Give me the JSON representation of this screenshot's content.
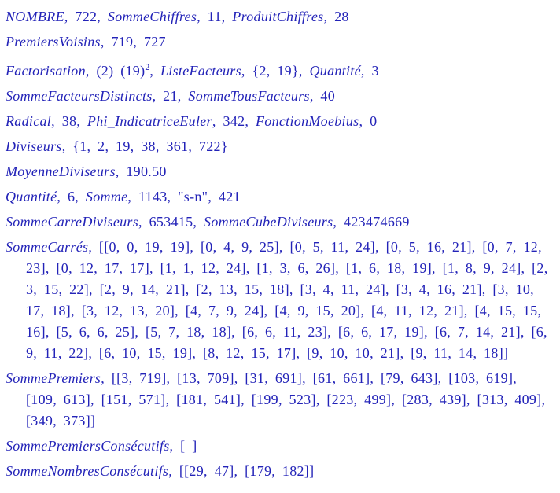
{
  "colors": {
    "text": "#2323b8",
    "background": "#ffffff"
  },
  "number": 722,
  "lines": [
    {
      "name": "nombre",
      "segments": [
        {
          "style": "it",
          "text": "NOMBRE"
        },
        {
          "style": "rm",
          "text": ", 722, "
        },
        {
          "style": "it",
          "text": "SommeChiffres"
        },
        {
          "style": "rm",
          "text": ", 11, "
        },
        {
          "style": "it",
          "text": "ProduitChiffres"
        },
        {
          "style": "rm",
          "text": ", 28"
        }
      ]
    },
    {
      "name": "premiers-voisins",
      "segments": [
        {
          "style": "it",
          "text": "PremiersVoisins"
        },
        {
          "style": "rm",
          "text": ", 719, 727"
        }
      ]
    },
    {
      "name": "factorisation",
      "segments": [
        {
          "style": "it",
          "text": "Factorisation"
        },
        {
          "style": "rm",
          "text": ", (2) (19)"
        },
        {
          "style": "sup",
          "text": "2"
        },
        {
          "style": "rm",
          "text": ", "
        },
        {
          "style": "it",
          "text": "ListeFacteurs"
        },
        {
          "style": "rm",
          "text": ", {2, 19}, "
        },
        {
          "style": "it",
          "text": "Quantité"
        },
        {
          "style": "rm",
          "text": ", 3"
        }
      ]
    },
    {
      "name": "somme-facteurs",
      "segments": [
        {
          "style": "it",
          "text": "SommeFacteursDistincts"
        },
        {
          "style": "rm",
          "text": ", 21, "
        },
        {
          "style": "it",
          "text": "SommeTousFacteurs"
        },
        {
          "style": "rm",
          "text": ", 40"
        }
      ]
    },
    {
      "name": "radical-phi-moebius",
      "segments": [
        {
          "style": "it",
          "text": "Radical"
        },
        {
          "style": "rm",
          "text": ", 38, "
        },
        {
          "style": "it",
          "text": "Phi_IndicatriceEuler"
        },
        {
          "style": "rm",
          "text": ", 342, "
        },
        {
          "style": "it",
          "text": "FonctionMoebius"
        },
        {
          "style": "rm",
          "text": ", 0"
        }
      ]
    },
    {
      "name": "diviseurs",
      "segments": [
        {
          "style": "it",
          "text": "Diviseurs"
        },
        {
          "style": "rm",
          "text": ", {1, 2, 19, 38, 361, 722}"
        }
      ]
    },
    {
      "name": "moyenne-diviseurs",
      "segments": [
        {
          "style": "it",
          "text": "MoyenneDiviseurs"
        },
        {
          "style": "rm",
          "text": ", 190.50"
        }
      ]
    },
    {
      "name": "quantite-somme",
      "segments": [
        {
          "style": "it",
          "text": "Quantité"
        },
        {
          "style": "rm",
          "text": ", 6, "
        },
        {
          "style": "it",
          "text": "Somme"
        },
        {
          "style": "rm",
          "text": ", 1143, \"s-n\", 421"
        }
      ]
    },
    {
      "name": "somme-carre-cube-diviseurs",
      "segments": [
        {
          "style": "it",
          "text": "SommeCarreDiviseurs"
        },
        {
          "style": "rm",
          "text": ", 653415, "
        },
        {
          "style": "it",
          "text": "SommeCubeDiviseurs"
        },
        {
          "style": "rm",
          "text": ", 423474669"
        }
      ]
    },
    {
      "name": "somme-carres",
      "segments": [
        {
          "style": "it",
          "text": "SommeCarrés"
        },
        {
          "style": "rm",
          "text": ", [[0, 0, 19, 19], [0, 4, 9, 25], [0, 5, 11, 24], [0, 5, 16, 21], [0, 7, 12, 23], [0, 12, 17, 17], [1, 1, 12, 24], [1, 3, 6, 26], [1, 6, 18, 19], [1, 8, 9, 24], [2, 3, 15, 22], [2, 9, 14, 21], [2, 13, 15, 18], [3, 4, 11, 24], [3, 4, 16, 21], [3, 10, 17, 18], [3, 12, 13, 20], [4, 7, 9, 24], [4, 9, 15, 20], [4, 11, 12, 21], [4, 15, 15, 16], [5, 6, 6, 25], [5, 7, 18, 18], [6, 6, 11, 23], [6, 6, 17, 19], [6, 7, 14, 21], [6, 9, 11, 22], [6, 10, 15, 19], [8, 12, 15, 17], [9, 10, 10, 21], [9, 11, 14, 18]]"
        }
      ]
    },
    {
      "name": "somme-premiers",
      "segments": [
        {
          "style": "it",
          "text": "SommePremiers"
        },
        {
          "style": "rm",
          "text": ", [[3, 719], [13, 709], [31, 691], [61, 661], [79, 643], [103, 619], [109, 613], [151, 571], [181, 541], [199, 523], [223, 499], [283, 439], [313, 409], [349, 373]]"
        }
      ]
    },
    {
      "name": "somme-premiers-consecutifs",
      "segments": [
        {
          "style": "it",
          "text": "SommePremiersConsécutifs"
        },
        {
          "style": "rm",
          "text": ", [ ]"
        }
      ]
    },
    {
      "name": "somme-nombres-consecutifs",
      "segments": [
        {
          "style": "it",
          "text": "SommeNombresConsécutifs"
        },
        {
          "style": "rm",
          "text": ", [[29, 47], [179, 182]]"
        }
      ]
    }
  ]
}
